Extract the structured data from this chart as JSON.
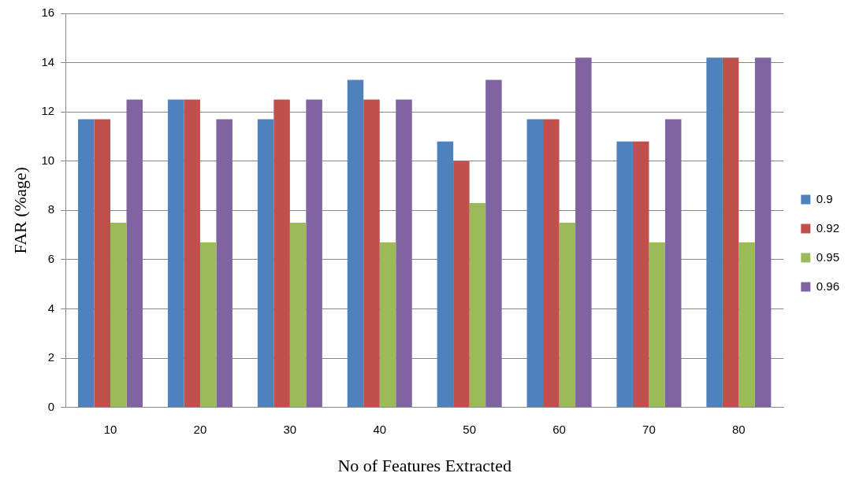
{
  "chart_data": {
    "type": "bar",
    "xlabel": "No of Features Extracted",
    "ylabel": "FAR (%age)",
    "categories": [
      "10",
      "20",
      "30",
      "40",
      "50",
      "60",
      "70",
      "80"
    ],
    "series": [
      {
        "name": "0.9",
        "color": "#4f81bd",
        "values": [
          11.7,
          12.5,
          11.7,
          13.3,
          10.8,
          11.7,
          10.8,
          14.2
        ]
      },
      {
        "name": "0.92",
        "color": "#c0504d",
        "values": [
          11.7,
          12.5,
          12.5,
          12.5,
          10,
          11.7,
          10.8,
          14.2
        ]
      },
      {
        "name": "0.95",
        "color": "#9bbb59",
        "values": [
          7.5,
          6.7,
          7.5,
          6.7,
          8.3,
          7.5,
          6.7,
          6.7
        ]
      },
      {
        "name": "0.96",
        "color": "#8064a2",
        "values": [
          12.5,
          11.7,
          12.5,
          12.5,
          13.3,
          14.2,
          11.7,
          14.2
        ]
      }
    ],
    "ylim": [
      0,
      16
    ],
    "yticks": [
      0,
      2,
      4,
      6,
      8,
      10,
      12,
      14,
      16
    ],
    "grid": "y",
    "legend": "right"
  }
}
